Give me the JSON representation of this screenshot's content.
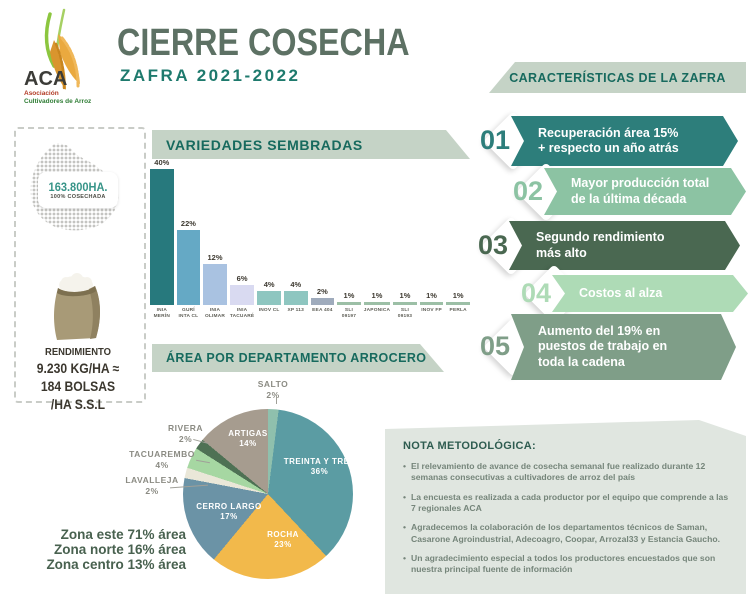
{
  "brand": {
    "acronym": "ACA",
    "org_line1": "Asociación",
    "org_line2": "Cultivadores de Arroz"
  },
  "header": {
    "title": "CIERRE COSECHA",
    "subtitle": "ZAFRA 2021-2022"
  },
  "sidebar": {
    "area_value": "163.800HA.",
    "area_sub": "100% COSECHADA",
    "yield_label": "RENDIMIENTO",
    "yield_lines": [
      "9.230 KG/HA ≈",
      "184 BOLSAS",
      "/HA S.S.L"
    ]
  },
  "varieties_banner": "VARIEDADES SEMBRADAS",
  "departments_banner": "ÁREA POR DEPARTAMENTO ARROCERO",
  "zones": [
    "Zona este 71% área",
    "Zona norte 16% área",
    "Zona centro 13% área"
  ],
  "caracteristicas": {
    "banner": "CARACTERÍSTICAS DE LA ZAFRA",
    "items": [
      {
        "num": "01",
        "text": "Recuperación área 15%\n+ respecto un año atrás",
        "color": "#2d7e7b"
      },
      {
        "num": "02",
        "text": "Mayor producción total\nde la última década",
        "color": "#8cc3a3"
      },
      {
        "num": "03",
        "text": "Segundo rendimiento\nmás alto",
        "color": "#4a6851"
      },
      {
        "num": "04",
        "text": "Costos al alza",
        "color": "#aedbb6"
      },
      {
        "num": "05",
        "text": "Aumento del 19% en\npuestos de trabajo en\ntoda la cadena",
        "color": "#7f9e88"
      }
    ]
  },
  "nota": {
    "title": "NOTA METODOLÓGICA:",
    "bullets": [
      "El relevamiento de avance de cosecha semanal fue realizado durante 12 semanas consecutivas a cultivadores de arroz del país",
      "La encuesta es realizada a cada productor por el equipo que comprende a las 7 regionales ACA",
      "Agradecemos la colaboración de los departamentos técnicos de Saman, Casarone Agroindustrial, Adecoagro, Coopar, Arrozal33 y Estancia Gaucho.",
      "Un agradecimiento especial a todos los productores encuestados que son nuestra principal fuente de información"
    ]
  },
  "chart_data": [
    {
      "type": "bar",
      "title": "VARIEDADES SEMBRADAS",
      "categories": [
        "INIA MERÍN",
        "GURÍ INTA CL",
        "INIA OLIMAR",
        "INIA TACUARÉ",
        "INOV CL",
        "XP 113",
        "EEA 404",
        "SLI 09197",
        "JAPONICA",
        "SLI 09193",
        "INOV FP",
        "PERLA"
      ],
      "values": [
        40,
        22,
        12,
        6,
        4,
        4,
        2,
        1,
        1,
        1,
        1,
        1
      ],
      "unit": "%",
      "ylim": [
        0,
        40
      ],
      "grid": false,
      "bar_colors": [
        "#27797d",
        "#65a9c5",
        "#a9c2e1",
        "#d9daf1",
        "#8ec6c0",
        "#8ec6c0",
        "#9fabbc",
        "#9cbfa6",
        "#9cbfa6",
        "#9cbfa6",
        "#9cbfa6",
        "#9cbfa6"
      ]
    },
    {
      "type": "pie",
      "title": "ÁREA POR DEPARTAMENTO ARROCERO",
      "categories": [
        "SALTO",
        "TREINTA Y TRES",
        "ROCHA",
        "CERRO LARGO",
        "LAVALLEJA",
        "TACUAREMBO",
        "RIVERA",
        "ARTIGAS"
      ],
      "values": [
        2,
        36,
        23,
        17,
        2,
        4,
        2,
        14
      ],
      "unit": "%",
      "start_angle_deg": 0,
      "direction": "clockwise",
      "slice_colors": [
        "#8fc0ad",
        "#5b9ca3",
        "#f2b94b",
        "#6b93a6",
        "#eae7d8",
        "#a6d7a2",
        "#4e7154",
        "#a69c8f"
      ]
    }
  ]
}
